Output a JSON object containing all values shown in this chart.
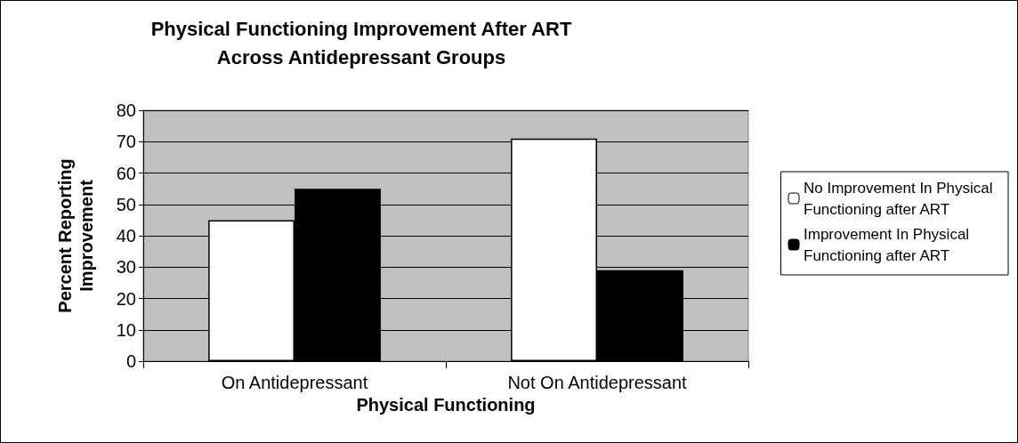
{
  "chart_data": {
    "type": "bar",
    "title": "Physical Functioning Improvement After ART\nAcross Antidepressant Groups",
    "xlabel": "Physical Functioning",
    "ylabel": "Percent Reporting\nImprovement",
    "categories": [
      "On Antidepressant",
      "Not On Antidepressant"
    ],
    "series": [
      {
        "name": "No Improvement In Physical Functioning after ART",
        "color": "#ffffff",
        "values": [
          45,
          71
        ]
      },
      {
        "name": "Improvement In Physical Functioning after ART",
        "color": "#000000",
        "values": [
          55,
          29
        ]
      }
    ],
    "ylim": [
      0,
      80
    ],
    "yticks": [
      0,
      10,
      20,
      30,
      40,
      50,
      60,
      70,
      80
    ],
    "grid": "y",
    "legend": "right"
  }
}
